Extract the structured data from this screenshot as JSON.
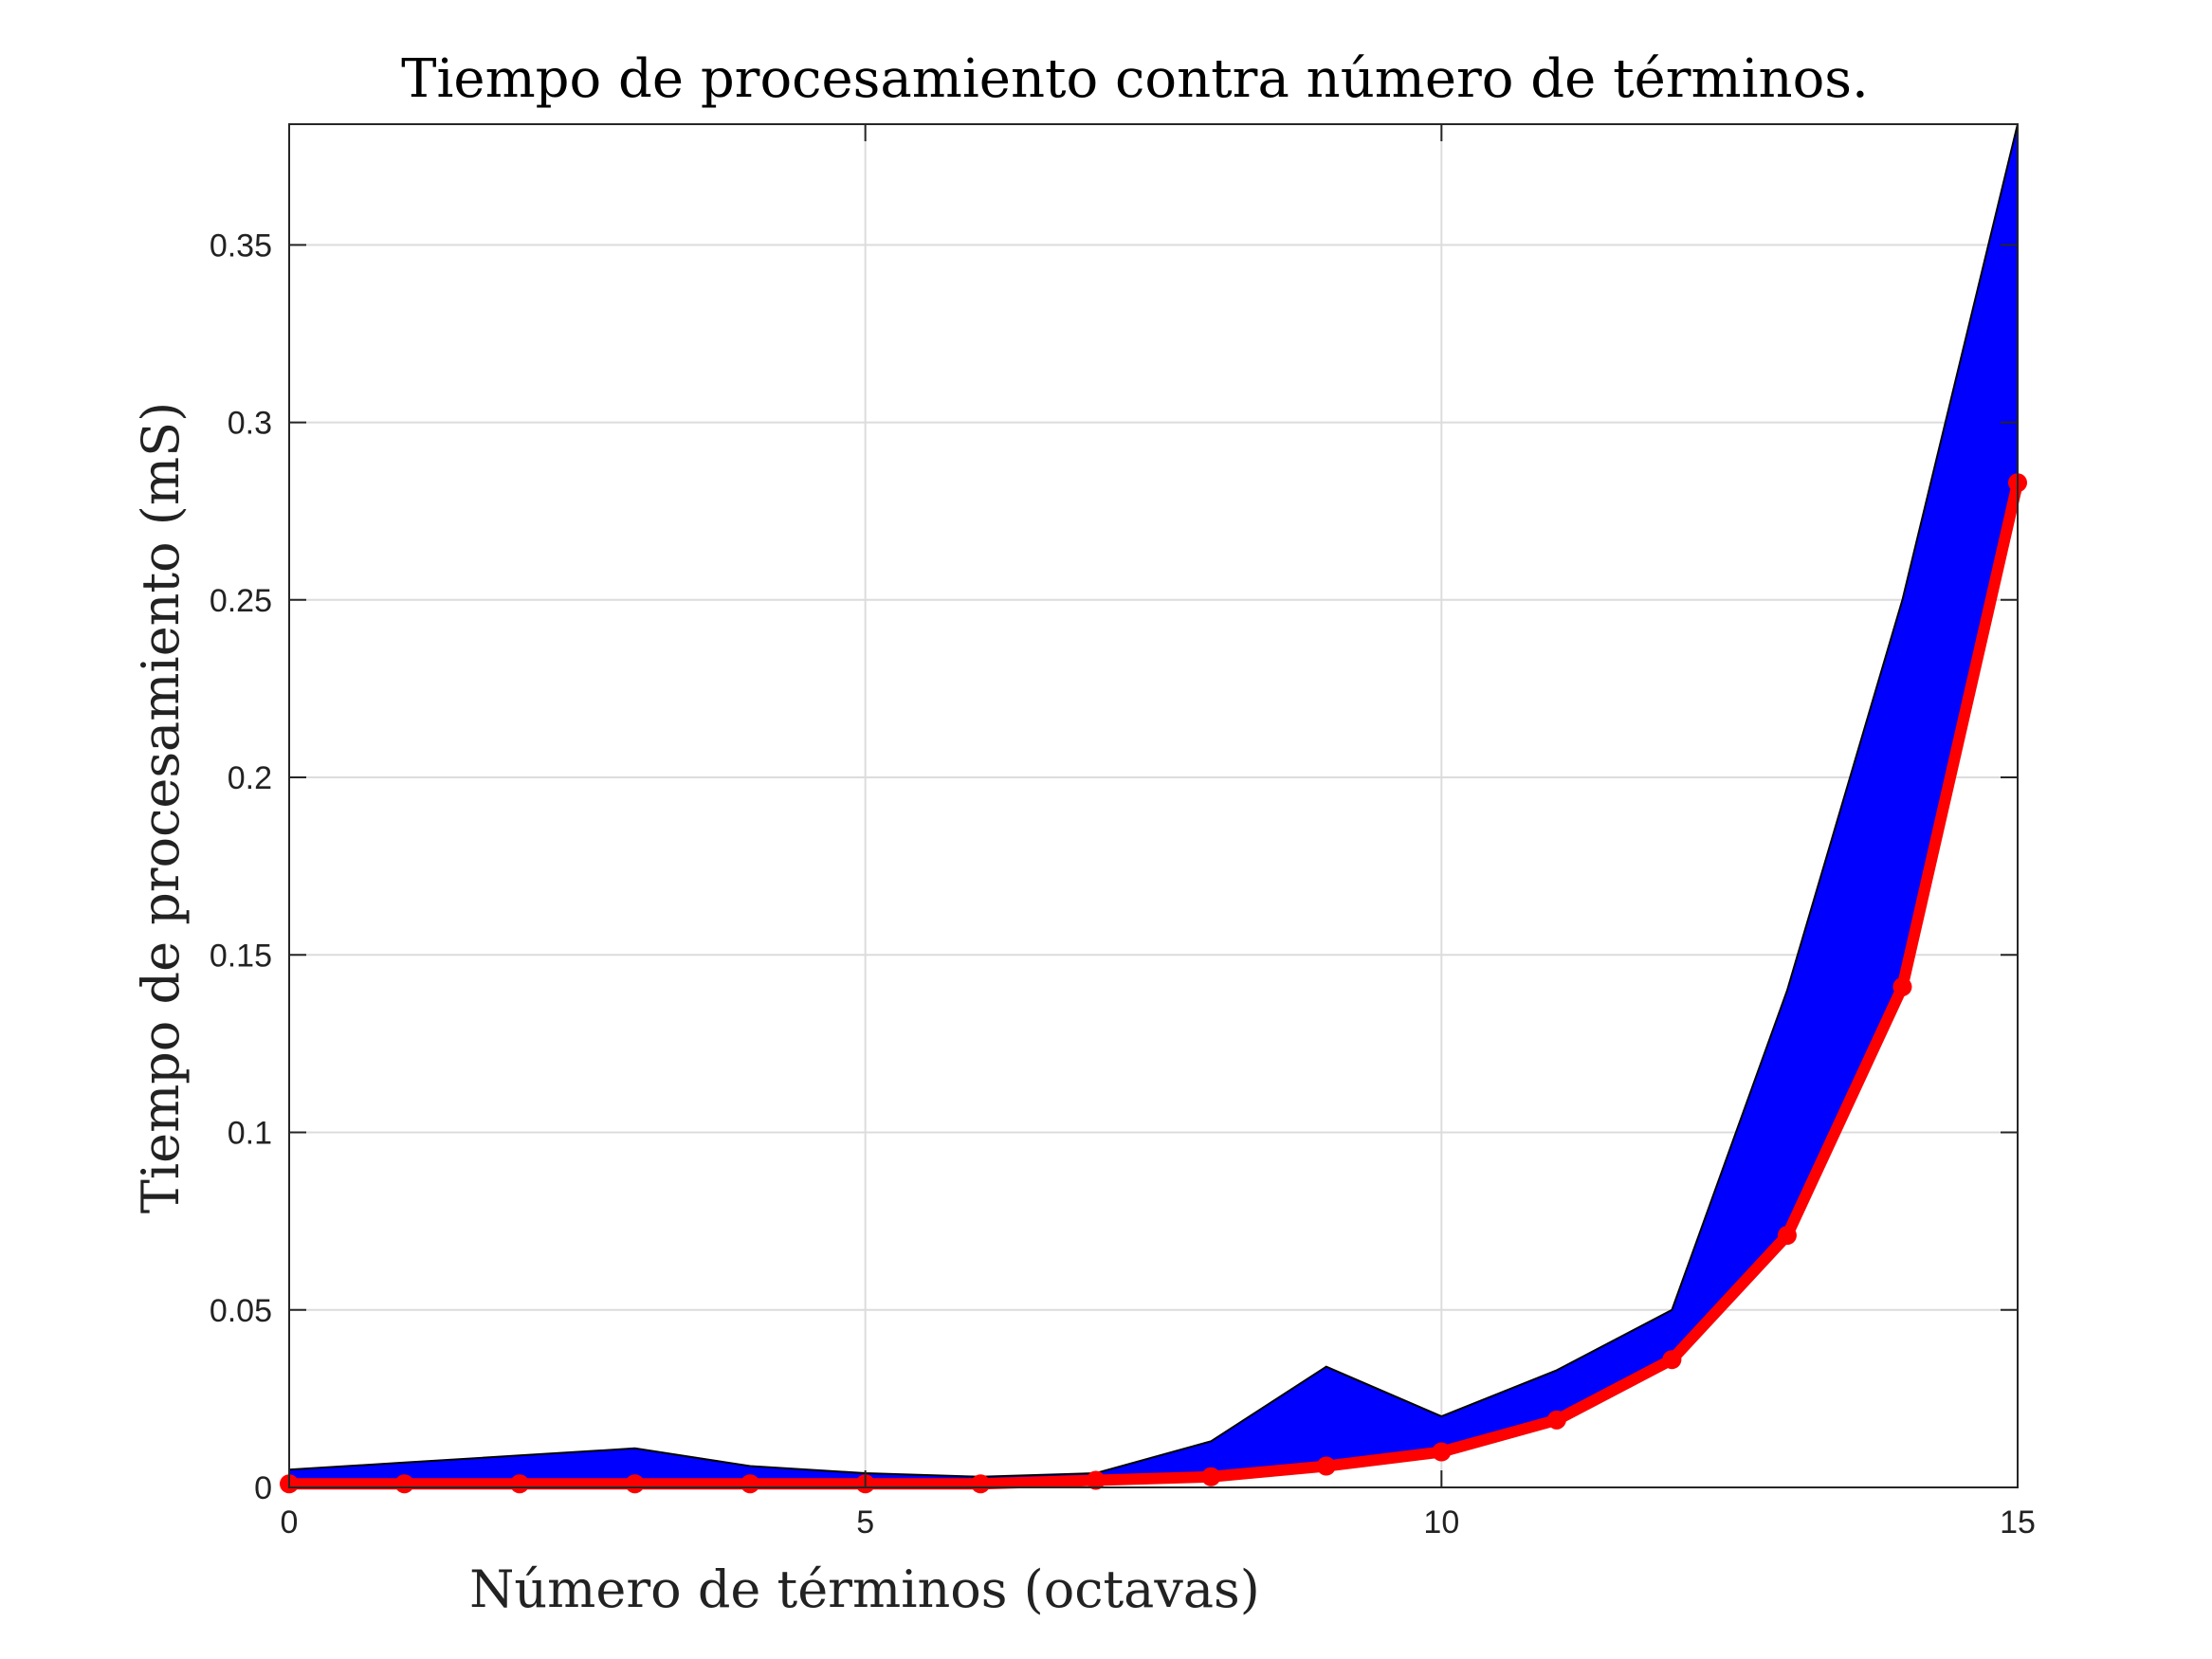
{
  "chart_data": {
    "type": "line",
    "title": "Tiempo de procesamiento contra número de términos.",
    "xlabel": "Número de términos (octavas)",
    "ylabel": "Tiempo de procesamiento (mS)",
    "xlim": [
      0,
      15
    ],
    "ylim": [
      0,
      0.384
    ],
    "xticks": [
      0,
      5,
      10,
      15
    ],
    "xtick_labels": [
      "0",
      "5",
      "10",
      "15"
    ],
    "yticks": [
      0,
      0.05,
      0.1,
      0.15,
      0.2,
      0.25,
      0.3,
      0.35
    ],
    "ytick_labels": [
      "0",
      "0.05",
      "0.1",
      "0.15",
      "0.2",
      "0.25",
      "0.3",
      "0.35"
    ],
    "grid": true,
    "x": [
      0,
      1,
      2,
      3,
      4,
      5,
      6,
      7,
      8,
      9,
      10,
      11,
      12,
      13,
      14,
      15
    ],
    "band_upper": [
      0.005,
      0.007,
      0.009,
      0.011,
      0.006,
      0.004,
      0.003,
      0.004,
      0.013,
      0.034,
      0.02,
      0.033,
      0.05,
      0.14,
      0.25,
      0.384
    ],
    "band_lower": [
      0.001,
      0.001,
      0.001,
      0.001,
      0.001,
      0.001,
      0.001,
      0.002,
      0.003,
      0.005,
      0.01,
      0.019,
      0.036,
      0.071,
      0.141,
      0.283
    ],
    "series": [
      {
        "values": [
          0.001,
          0.001,
          0.001,
          0.001,
          0.001,
          0.001,
          0.001,
          0.002,
          0.003,
          0.006,
          0.01,
          0.019,
          0.036,
          0.071,
          0.141,
          0.283
        ]
      }
    ],
    "colors": {
      "band_fill": "#0000ff",
      "band_edge": "#000000",
      "line": "#ff0000",
      "grid": "#dcdcdc",
      "axes": "#262626"
    }
  }
}
